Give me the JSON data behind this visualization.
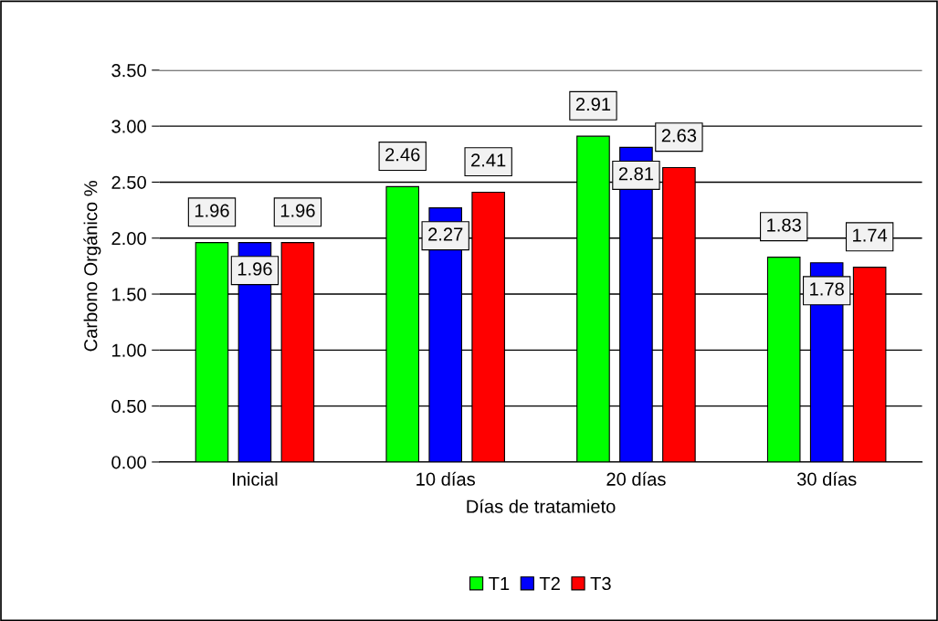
{
  "chart_data": {
    "type": "bar",
    "xlabel": "Días de tratamieto",
    "ylabel": "Carbono Orgánico %",
    "categories": [
      "Inicial",
      "10 días",
      "20 días",
      "30 días"
    ],
    "series": [
      {
        "name": "T1",
        "color": "#00ff00",
        "values": [
          1.96,
          2.46,
          2.91,
          1.83
        ]
      },
      {
        "name": "T2",
        "color": "#0000ff",
        "values": [
          1.96,
          2.27,
          2.81,
          1.78
        ]
      },
      {
        "name": "T3",
        "color": "#ff0000",
        "values": [
          1.96,
          2.41,
          2.63,
          1.74
        ]
      }
    ],
    "ylim": [
      0,
      3.5
    ],
    "yticks": [
      {
        "value": 0,
        "label": "0.00"
      },
      {
        "value": 0.5,
        "label": "0.50"
      },
      {
        "value": 1,
        "label": "1.00"
      },
      {
        "value": 1.5,
        "label": "1.50"
      },
      {
        "value": 2,
        "label": "2.00"
      },
      {
        "value": 2.5,
        "label": "2.50"
      },
      {
        "value": 3,
        "label": "3.00"
      },
      {
        "value": 3.5,
        "label": "3.50"
      }
    ],
    "grid": "y",
    "legend": "bottom",
    "data_labels": true
  }
}
